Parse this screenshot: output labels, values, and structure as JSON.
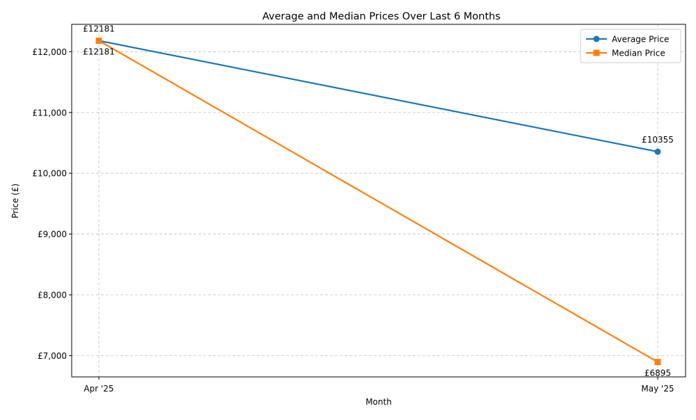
{
  "chart_data": {
    "type": "line",
    "title": "Average and Median Prices Over Last 6 Months",
    "xlabel": "Month",
    "ylabel": "Price (£)",
    "categories": [
      "Apr '25",
      "May '25"
    ],
    "ylim": [
      6650,
      12450
    ],
    "yticks": [
      7000,
      8000,
      9000,
      10000,
      11000,
      12000
    ],
    "ytick_labels": [
      "£7,000",
      "£8,000",
      "£9,000",
      "£10,000",
      "£11,000",
      "£12,000"
    ],
    "grid": true,
    "legend_position": "top-right",
    "series": [
      {
        "name": "Average Price",
        "values": [
          12181,
          10355
        ],
        "labels": [
          "£12181",
          "£10355"
        ],
        "color": "#1f77b4",
        "marker": "circle",
        "label_placement": "above"
      },
      {
        "name": "Median Price",
        "values": [
          12181,
          6895
        ],
        "labels": [
          "£12181",
          "£6895"
        ],
        "color": "#ff7f0e",
        "marker": "square",
        "label_placement": "below"
      }
    ]
  }
}
